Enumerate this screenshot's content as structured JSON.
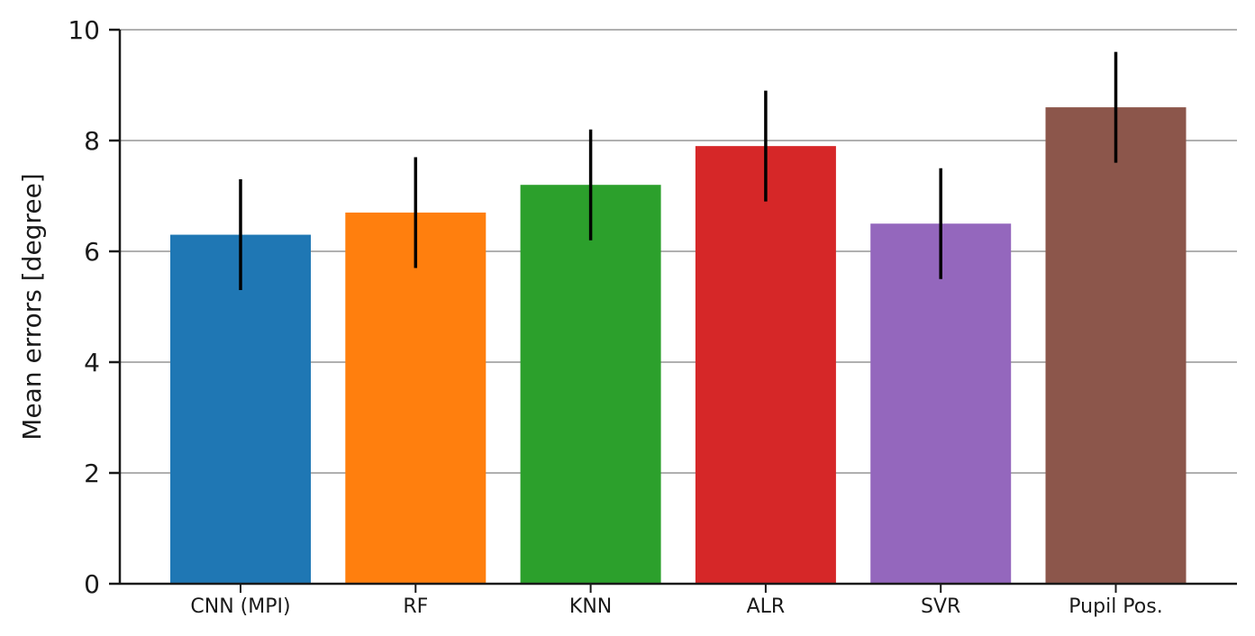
{
  "chart_data": {
    "type": "bar",
    "title": "",
    "xlabel": "",
    "ylabel": "Mean errors [degree]",
    "categories": [
      "CNN (MPI)",
      "RF",
      "KNN",
      "ALR",
      "SVR",
      "Pupil Pos."
    ],
    "values": [
      6.3,
      6.7,
      7.2,
      7.9,
      6.5,
      8.6
    ],
    "errors": [
      1.0,
      1.0,
      1.0,
      1.0,
      1.0,
      1.0
    ],
    "colors": [
      "#1f77b4",
      "#ff7f0e",
      "#2ca02c",
      "#d62728",
      "#9467bd",
      "#8c564b"
    ],
    "error_bar_color": "#000000",
    "ylim": [
      0,
      10
    ],
    "yticks": [
      0,
      2,
      4,
      6,
      8,
      10
    ],
    "ytick_labels": [
      "0",
      "2",
      "4",
      "6",
      "8",
      "10"
    ],
    "grid": true,
    "grid_axis": "y",
    "grid_color": "#808080",
    "axis_color": "#1a1a1a"
  }
}
